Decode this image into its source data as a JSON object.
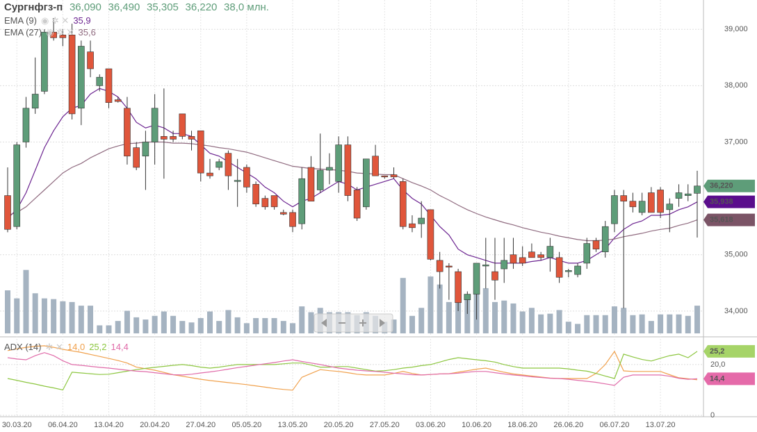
{
  "header": {
    "title": "Сургнфгз-п",
    "ohlc": [
      {
        "value": 36.09,
        "label": "36,090"
      },
      {
        "value": 36.49,
        "label": "36,490"
      },
      {
        "value": 35.305,
        "label": "35,305"
      },
      {
        "value": 36.22,
        "label": "36,220"
      }
    ],
    "volume": {
      "value": 38.0,
      "label": "38,0 млн."
    }
  },
  "chart_data": {
    "type": "candlestick",
    "categories": [
      null,
      "30.03.20",
      null,
      null,
      null,
      null,
      "06.04.20",
      null,
      null,
      null,
      null,
      "13.04.20",
      null,
      null,
      null,
      null,
      "20.04.20",
      null,
      null,
      null,
      null,
      "27.04.20",
      null,
      null,
      null,
      null,
      "05.05.20",
      null,
      null,
      null,
      null,
      "13.05.20",
      null,
      null,
      null,
      null,
      "20.05.20",
      null,
      null,
      null,
      null,
      "27.05.20",
      null,
      null,
      null,
      null,
      "03.06.20",
      null,
      null,
      null,
      null,
      "10.06.20",
      null,
      null,
      null,
      null,
      "18.06.20",
      null,
      null,
      null,
      null,
      "26.06.20",
      null,
      null,
      null,
      null,
      "06.07.20",
      null,
      null,
      null,
      null,
      "13.07.20",
      null,
      null,
      null,
      null
    ],
    "ylim": [
      33.58,
      39.52
    ],
    "yticks": [
      {
        "value": 34,
        "label": "34,000"
      },
      {
        "value": 35,
        "label": "35,000"
      },
      {
        "value": 37,
        "label": "37,000"
      },
      {
        "value": 38,
        "label": "38,000"
      },
      {
        "value": 39,
        "label": "39,000"
      }
    ],
    "grid": true,
    "candles": {
      "up_color": "#5e9d79",
      "down_color": "#e0563b",
      "last_label": "36,220",
      "open": [
        36.05,
        35.5,
        37.0,
        37.6,
        37.9,
        38.95,
        38.9,
        38.9,
        37.6,
        38.6,
        38.0,
        38.3,
        37.75,
        37.6,
        36.9,
        36.75,
        37.0,
        37.1,
        37.1,
        37.5,
        37.1,
        37.2,
        36.45,
        36.55,
        36.8,
        36.3,
        36.55,
        36.25,
        36.0,
        36.05,
        35.75,
        35.75,
        35.55,
        36.55,
        36.15,
        36.5,
        36.3,
        36.95,
        36.15,
        35.85,
        36.75,
        36.4,
        36.42,
        36.3,
        35.55,
        35.55,
        35.8,
        34.9,
        34.8,
        34.7,
        34.2,
        34.3,
        34.8,
        34.7,
        34.75,
        35.0,
        34.95,
        35.05,
        35.0,
        34.95,
        34.95,
        34.7,
        34.65,
        34.85,
        35.25,
        35.05,
        35.55,
        36.05,
        35.95,
        35.75,
        36.1,
        36.15,
        35.8,
        36.0,
        36.05,
        36.09
      ],
      "high": [
        36.55,
        37.0,
        37.8,
        38.5,
        39.0,
        39.2,
        39.0,
        39.1,
        38.8,
        38.8,
        38.2,
        38.3,
        37.8,
        37.8,
        37.0,
        37.2,
        37.85,
        37.95,
        37.2,
        37.5,
        37.2,
        37.2,
        36.7,
        36.7,
        36.85,
        36.7,
        36.6,
        36.3,
        36.05,
        36.05,
        35.8,
        35.8,
        36.55,
        36.75,
        37.15,
        36.8,
        37.1,
        37.1,
        36.2,
        36.7,
        36.95,
        36.4,
        36.55,
        36.35,
        35.7,
        35.95,
        35.8,
        35.05,
        34.85,
        34.75,
        34.35,
        34.85,
        35.3,
        35.3,
        35.3,
        35.3,
        35.15,
        35.2,
        35.05,
        35.3,
        35.05,
        34.75,
        34.85,
        35.3,
        35.3,
        35.6,
        36.15,
        36.15,
        36.1,
        36.1,
        36.2,
        36.2,
        36.0,
        36.25,
        36.25,
        36.49
      ],
      "low": [
        35.4,
        35.45,
        36.9,
        37.5,
        37.85,
        38.8,
        38.7,
        37.4,
        37.3,
        38.15,
        37.9,
        37.6,
        37.7,
        36.6,
        36.5,
        36.15,
        36.6,
        36.35,
        37.0,
        37.05,
        36.85,
        36.3,
        36.35,
        36.5,
        36.15,
        35.85,
        36.1,
        35.85,
        35.8,
        35.8,
        35.7,
        35.4,
        35.45,
        35.95,
        36.1,
        36.25,
        36.1,
        35.95,
        35.6,
        35.8,
        36.4,
        36.35,
        36.35,
        35.45,
        35.4,
        35.3,
        34.9,
        34.4,
        34.2,
        34.0,
        33.95,
        33.85,
        34.4,
        34.2,
        34.5,
        34.75,
        34.8,
        34.95,
        34.9,
        34.7,
        34.5,
        34.6,
        34.6,
        34.75,
        35.05,
        34.95,
        35.4,
        34.05,
        35.75,
        35.7,
        35.75,
        35.65,
        35.4,
        35.85,
        35.95,
        35.305
      ],
      "close": [
        35.45,
        36.95,
        37.6,
        37.85,
        38.95,
        38.85,
        38.85,
        37.5,
        38.7,
        38.3,
        38.15,
        37.7,
        37.72,
        36.75,
        36.55,
        37.0,
        37.6,
        37.05,
        37.05,
        37.1,
        37.05,
        36.45,
        36.4,
        36.65,
        36.4,
        36.32,
        36.2,
        35.9,
        35.85,
        35.85,
        35.72,
        35.5,
        36.35,
        35.95,
        36.5,
        36.55,
        36.95,
        36.05,
        35.65,
        36.7,
        36.4,
        36.38,
        36.38,
        35.5,
        35.48,
        35.65,
        34.92,
        34.7,
        34.78,
        34.15,
        34.3,
        34.85,
        34.82,
        34.55,
        34.9,
        34.85,
        34.85,
        34.95,
        34.95,
        35.15,
        34.6,
        34.72,
        34.8,
        35.2,
        35.1,
        35.5,
        36.05,
        35.95,
        35.85,
        35.95,
        35.75,
        35.75,
        35.9,
        36.1,
        36.08,
        36.22
      ]
    },
    "volume": {
      "color": "#a5b3c1",
      "ylim": [
        0,
        100
      ],
      "values": [
        59,
        48,
        87,
        55,
        48,
        47,
        44,
        43,
        38,
        38,
        11,
        11,
        17,
        31,
        22,
        19,
        24,
        30,
        24,
        17,
        15,
        21,
        30,
        17,
        32,
        22,
        14,
        21,
        21,
        21,
        17,
        14,
        37,
        29,
        35,
        29,
        29,
        29,
        25,
        29,
        24,
        16,
        19,
        76,
        24,
        35,
        78,
        67,
        43,
        52,
        48,
        55,
        62,
        43,
        45,
        41,
        30,
        35,
        26,
        27,
        32,
        16,
        13,
        25,
        25,
        25,
        37,
        35,
        25,
        26,
        17,
        26,
        26,
        26,
        24,
        38.0
      ]
    },
    "series": [
      {
        "name": "EMA (9)",
        "legend_value": "35,9",
        "last_label": "35,938",
        "color": "#6b2390",
        "badge_color": "#5a0d8c",
        "values": [
          35.65,
          35.8,
          36.1,
          36.5,
          36.9,
          37.2,
          37.45,
          37.6,
          37.65,
          37.85,
          37.95,
          37.9,
          37.8,
          37.6,
          37.35,
          37.25,
          37.3,
          37.25,
          37.15,
          37.15,
          37.1,
          36.95,
          36.8,
          36.75,
          36.65,
          36.55,
          36.45,
          36.35,
          36.2,
          36.1,
          35.95,
          35.85,
          35.95,
          36.0,
          36.1,
          36.2,
          36.3,
          36.25,
          36.15,
          36.2,
          36.25,
          36.3,
          36.35,
          36.15,
          36.0,
          35.9,
          35.7,
          35.5,
          35.35,
          35.1,
          35.0,
          34.95,
          34.9,
          34.85,
          34.85,
          34.85,
          34.85,
          34.88,
          34.9,
          34.95,
          34.9,
          34.85,
          34.85,
          34.9,
          35.0,
          35.1,
          35.3,
          35.45,
          35.55,
          35.6,
          35.7,
          35.7,
          35.72,
          35.8,
          35.85,
          35.938
        ]
      },
      {
        "name": "EMA (27)",
        "legend_value": "35,6",
        "last_label": "35,618",
        "color": "#8f6a7f",
        "badge_color": "#7b5466",
        "values": [
          35.7,
          35.75,
          35.85,
          36.0,
          36.15,
          36.3,
          36.45,
          36.55,
          36.62,
          36.72,
          36.8,
          36.88,
          36.93,
          36.97,
          36.98,
          37.0,
          37.0,
          37.0,
          36.98,
          36.98,
          36.97,
          36.95,
          36.93,
          36.9,
          36.88,
          36.85,
          36.82,
          36.77,
          36.72,
          36.67,
          36.62,
          36.57,
          36.55,
          36.53,
          36.52,
          36.51,
          36.5,
          36.48,
          36.45,
          36.44,
          36.43,
          36.42,
          36.42,
          36.35,
          36.28,
          36.22,
          36.15,
          36.05,
          35.97,
          35.88,
          35.8,
          35.73,
          35.67,
          35.62,
          35.57,
          35.53,
          35.48,
          35.44,
          35.4,
          35.37,
          35.33,
          35.3,
          35.27,
          35.25,
          35.25,
          35.26,
          35.28,
          35.32,
          35.35,
          35.38,
          35.42,
          35.45,
          35.47,
          35.52,
          35.56,
          35.618
        ]
      }
    ],
    "adx": {
      "name": "ADX (14)",
      "ylim": [
        0,
        30.1
      ],
      "yticks": [
        0,
        {
          "value": 20,
          "label": "20,0"
        }
      ],
      "series": [
        {
          "legend_value": "14,0",
          "color": "#f0a04b",
          "values": [
            25.5,
            26.2,
            26.8,
            27.2,
            27.4,
            26.8,
            26.0,
            25.4,
            24.8,
            24.0,
            23.2,
            22.4,
            21.6,
            20.6,
            19.0,
            18.4,
            17.8,
            16.9,
            16.0,
            15.4,
            14.8,
            14.2,
            13.7,
            13.3,
            12.9,
            12.5,
            12.1,
            11.6,
            11.1,
            10.6,
            10.2,
            9.9,
            15.0,
            16.5,
            18.0,
            17.6,
            17.3,
            16.8,
            16.2,
            15.9,
            15.9,
            15.9,
            16.5,
            17.3,
            16.5,
            15.9,
            16.1,
            16.3,
            16.4,
            17.0,
            17.6,
            18.2,
            18.6,
            17.8,
            17.0,
            16.3,
            15.9,
            15.5,
            15.1,
            14.7,
            14.5,
            14.5,
            14.5,
            14.5,
            16.5,
            20.0,
            25.2,
            17.5,
            17.3,
            17.3,
            17.3,
            17.3,
            16.0,
            14.8,
            14.4,
            14.0
          ]
        },
        {
          "legend_value": "25,2",
          "last_label": "25,2",
          "color": "#8cc63f",
          "badge_color": "#a6d468",
          "values": [
            14.5,
            13.8,
            13.0,
            12.3,
            11.5,
            10.8,
            10.0,
            17.0,
            16.7,
            16.4,
            16.1,
            16.2,
            16.8,
            17.4,
            18.0,
            18.5,
            18.9,
            19.3,
            19.7,
            20.0,
            19.6,
            19.0,
            18.6,
            19.0,
            19.5,
            20.0,
            20.0,
            20.0,
            20.0,
            20.0,
            20.3,
            20.6,
            20.6,
            19.8,
            19.0,
            19.0,
            19.2,
            19.2,
            18.6,
            18.0,
            17.4,
            17.6,
            18.0,
            18.6,
            19.0,
            19.6,
            20.0,
            21.0,
            22.0,
            22.7,
            22.3,
            21.9,
            21.5,
            21.0,
            20.0,
            19.2,
            18.6,
            18.6,
            18.6,
            18.6,
            18.6,
            18.3,
            17.8,
            17.4,
            16.5,
            15.5,
            14.5,
            24.1,
            23.0,
            22.0,
            21.4,
            22.5,
            23.5,
            24.1,
            22.7,
            25.2
          ]
        },
        {
          "legend_value": "14,4",
          "last_label": "14,4",
          "color": "#e06aa8",
          "badge_color": "#e56aa9",
          "values": [
            22.7,
            22.2,
            21.9,
            23.5,
            24.7,
            23.5,
            21.5,
            20.0,
            19.7,
            19.3,
            18.9,
            18.6,
            18.2,
            17.8,
            17.4,
            17.2,
            16.8,
            16.4,
            16.0,
            15.9,
            16.2,
            16.7,
            17.1,
            17.6,
            18.2,
            18.8,
            19.3,
            19.8,
            20.3,
            20.8,
            21.4,
            21.9,
            21.2,
            20.6,
            20.0,
            19.3,
            18.6,
            18.2,
            17.8,
            17.5,
            17.3,
            17.0,
            16.6,
            16.3,
            16.0,
            15.9,
            16.1,
            16.3,
            16.4,
            16.6,
            17.0,
            17.3,
            17.3,
            16.8,
            16.3,
            15.9,
            15.6,
            15.2,
            14.9,
            14.6,
            14.5,
            14.2,
            13.8,
            13.4,
            13.0,
            12.4,
            11.8,
            15.0,
            15.9,
            15.9,
            15.9,
            15.9,
            15.4,
            14.6,
            14.2,
            14.4
          ]
        }
      ]
    }
  }
}
